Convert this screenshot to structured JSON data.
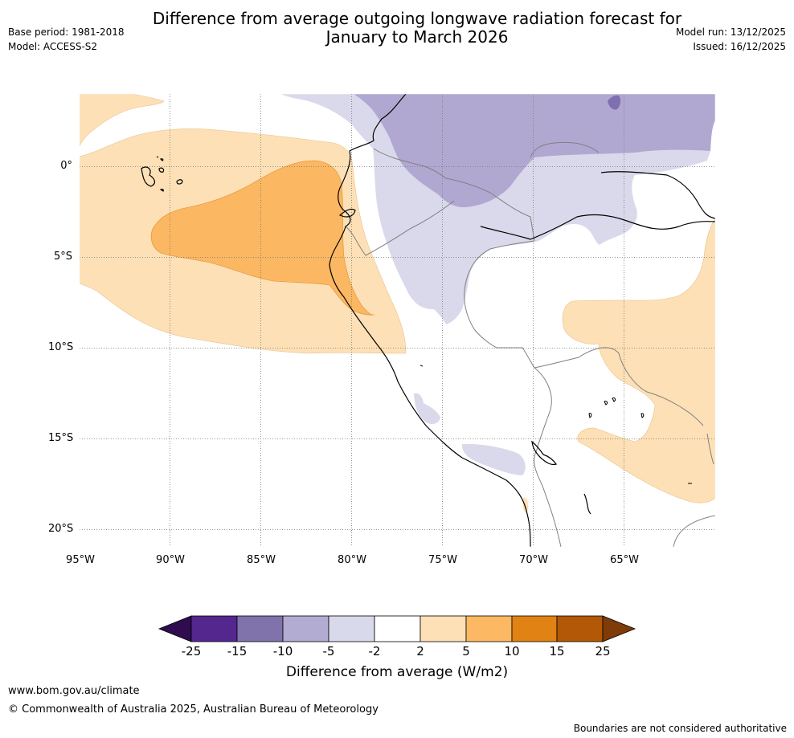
{
  "header": {
    "title_line1": "Difference from average outgoing longwave radiation forecast for",
    "title_line2": "January to March 2026",
    "base_period": "Base period: 1981-2018",
    "model": "Model: ACCESS-S2",
    "model_run": "Model run: 13/12/2025",
    "issued": "Issued: 16/12/2025"
  },
  "map": {
    "lon_labels": [
      "95°W",
      "90°W",
      "85°W",
      "80°W",
      "75°W",
      "70°W",
      "65°W"
    ],
    "lat_labels": [
      "0°",
      "5°S",
      "10°S",
      "15°S",
      "20°S"
    ],
    "region": "Western South America (Ecuador, Peru, Colombia)",
    "colors": {
      "strong_negative": "#7f6fae",
      "moderate_negative": "#b1a8d2",
      "weak_negative": "#d9d9eb",
      "weak_positive": "#fde0b6",
      "moderate_positive": "#fbb762",
      "coastline": "#000000",
      "borders": "#808080"
    }
  },
  "colorbar": {
    "title": "Difference from average (W/m2)",
    "labels": [
      "-25",
      "-15",
      "-10",
      "-5",
      "-2",
      "2",
      "5",
      "10",
      "15",
      "25"
    ],
    "colors": [
      "#2f0c4f",
      "#54278f",
      "#8073ac",
      "#b2abd2",
      "#d8daeb",
      "#ffffff",
      "#fee0b6",
      "#fdb863",
      "#e08214",
      "#b35806",
      "#7f3b08"
    ]
  },
  "footer": {
    "website": "www.bom.gov.au/climate",
    "copyright": "© Commonwealth of Australia 2025, Australian Bureau of Meteorology",
    "disclaimer": "Boundaries are not considered authoritative"
  }
}
